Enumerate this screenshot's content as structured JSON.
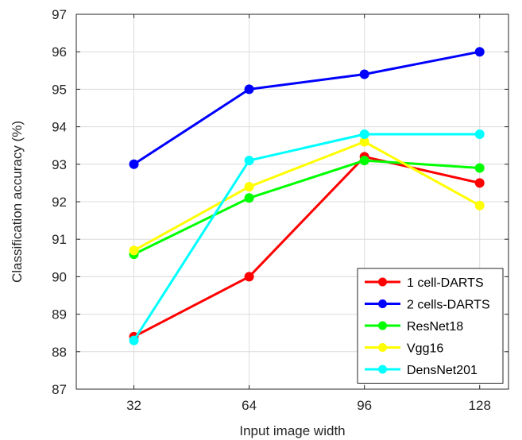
{
  "chart_data": {
    "type": "line",
    "title": "",
    "xlabel": "Input image width",
    "ylabel": "Classification accuracy (%)",
    "x": [
      32,
      64,
      96,
      128
    ],
    "xticks": [
      "32",
      "64",
      "96",
      "128"
    ],
    "yticks": [
      "87",
      "88",
      "89",
      "90",
      "91",
      "92",
      "93",
      "94",
      "95",
      "96",
      "97"
    ],
    "xlim": [
      16,
      136
    ],
    "ylim": [
      87,
      97
    ],
    "grid": true,
    "legend_position": "bottom-right",
    "series": [
      {
        "name": "1 cell-DARTS",
        "color": "#ff0000",
        "values": [
          88.4,
          90.0,
          93.2,
          92.5
        ]
      },
      {
        "name": "2 cells-DARTS",
        "color": "#0000ff",
        "values": [
          93.0,
          95.0,
          95.4,
          96.0
        ]
      },
      {
        "name": "ResNet18",
        "color": "#00ff00",
        "values": [
          90.6,
          92.1,
          93.1,
          92.9
        ]
      },
      {
        "name": "Vgg16",
        "color": "#ffff00",
        "values": [
          90.7,
          92.4,
          93.6,
          91.9
        ]
      },
      {
        "name": "DensNet201",
        "color": "#00ffff",
        "values": [
          88.3,
          93.1,
          93.8,
          93.8
        ]
      }
    ]
  }
}
